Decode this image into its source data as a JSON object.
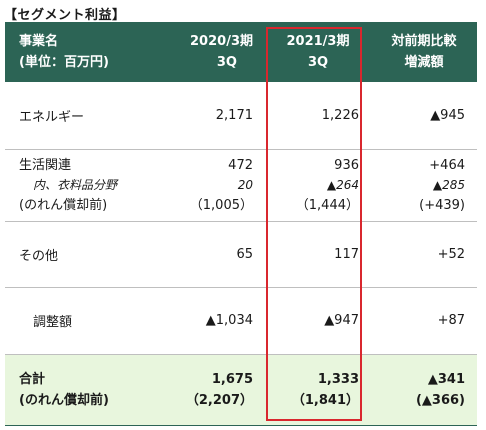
{
  "title": "【セグメント利益】",
  "header": {
    "col1": [
      "事業名",
      "(単位：百万円)"
    ],
    "col2": [
      "2020/3期",
      "3Q"
    ],
    "col3": [
      "2021/3期",
      "3Q"
    ],
    "col4": [
      "対前期比較",
      "増減額"
    ]
  },
  "rows": {
    "energy": {
      "label": "エネルギー",
      "prev": "2,171",
      "curr": "1,226",
      "diff": "▲945"
    },
    "life": {
      "label": "生活関連",
      "prev": "472",
      "curr": "936",
      "diff": "+464",
      "sub_label": "内、衣料品分野",
      "sub_prev": "20",
      "sub_curr": "▲264",
      "sub_diff": "▲285",
      "goodwill_label": "(のれん償却前)",
      "goodwill_prev": "（1,005）",
      "goodwill_curr": "（1,444）",
      "goodwill_diff": "(+439)"
    },
    "other": {
      "label": "その他",
      "prev": "65",
      "curr": "117",
      "diff": "+52"
    },
    "adjustment": {
      "label": "調整額",
      "prev": "▲1,034",
      "curr": "▲947",
      "diff": "+87"
    },
    "total": {
      "label": "合計",
      "prev": "1,675",
      "curr": "1,333",
      "diff": "▲341",
      "goodwill_label": "(のれん償却前)",
      "goodwill_prev": "（2,207）",
      "goodwill_curr": "（1,841）",
      "goodwill_diff": "(▲366)"
    }
  },
  "colors": {
    "header_bg": "#2c6455",
    "total_bg": "#e8f6dd",
    "highlight_border": "#d9272e"
  }
}
